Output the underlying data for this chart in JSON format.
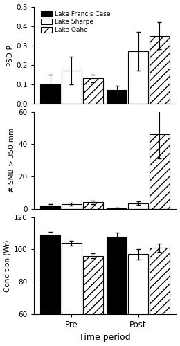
{
  "panels": [
    {
      "ylabel": "PSD-P",
      "ylim": [
        0.0,
        0.5
      ],
      "yticks": [
        0.0,
        0.1,
        0.2,
        0.3,
        0.4,
        0.5
      ],
      "pre_values": [
        0.1,
        0.17,
        0.13
      ],
      "post_values": [
        0.07,
        0.27,
        0.35
      ],
      "pre_errors": [
        0.05,
        0.07,
        0.02
      ],
      "post_errors": [
        0.02,
        0.1,
        0.07
      ]
    },
    {
      "ylabel": "# SMB > 350 mm",
      "ylim": [
        0,
        60
      ],
      "yticks": [
        0,
        20,
        40,
        60
      ],
      "pre_values": [
        2.0,
        3.0,
        4.0
      ],
      "post_values": [
        0.5,
        3.5,
        46.0
      ],
      "pre_errors": [
        0.8,
        0.8,
        1.0
      ],
      "post_errors": [
        0.3,
        1.2,
        15.0
      ]
    },
    {
      "ylabel": "Condition (Wr)",
      "ylim": [
        60,
        120
      ],
      "yticks": [
        60,
        80,
        100,
        120
      ],
      "pre_values": [
        109,
        104,
        96
      ],
      "post_values": [
        108,
        97,
        101
      ],
      "pre_errors": [
        2.0,
        1.5,
        1.5
      ],
      "post_errors": [
        2.5,
        3.0,
        2.5
      ]
    }
  ],
  "categories": [
    "Pre",
    "Post"
  ],
  "legend_labels": [
    "Lake Francis Case",
    "Lake Sharpe",
    "Lake Oahe"
  ],
  "bar_width": 0.18,
  "group_centers": [
    0.32,
    0.88
  ],
  "xlim": [
    0.0,
    1.2
  ],
  "xlabel": "Time period",
  "hatch_pattern": "///",
  "background_color": "white"
}
